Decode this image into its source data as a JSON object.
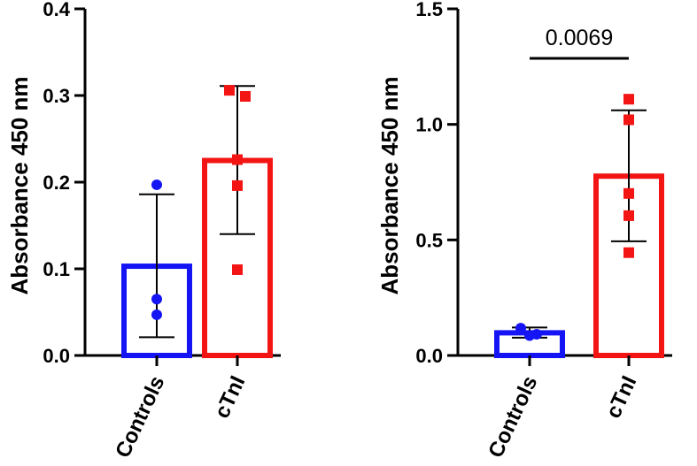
{
  "chart_data": [
    {
      "type": "bar",
      "title": "",
      "xlabel": "",
      "ylabel": "Absorbance 450 nm",
      "ylim": [
        0,
        0.4
      ],
      "yticks": [
        0.0,
        0.1,
        0.2,
        0.3,
        0.4
      ],
      "ytick_labels": [
        "0.0",
        "0.1",
        "0.2",
        "0.3",
        "0.4"
      ],
      "categories": [
        "Controls",
        "cTnI"
      ],
      "bars": [
        {
          "category": "Controls",
          "mean": 0.103,
          "sd_low": 0.021,
          "sd_high": 0.186,
          "color": "#1414f5",
          "points": [
            0.197,
            0.065,
            0.047
          ]
        },
        {
          "category": "cTnI",
          "mean": 0.225,
          "sd_low": 0.14,
          "sd_high": 0.311,
          "color": "#f31414",
          "points": [
            0.306,
            0.299,
            0.226,
            0.196,
            0.099
          ]
        }
      ],
      "annotation": null
    },
    {
      "type": "bar",
      "title": "",
      "xlabel": "",
      "ylabel": "Absorbance 450 nm",
      "ylim": [
        0,
        1.5
      ],
      "yticks": [
        0.0,
        0.5,
        1.0,
        1.5
      ],
      "ytick_labels": [
        "0.0",
        "0.5",
        "1.0",
        "1.5"
      ],
      "categories": [
        "Controls",
        "cTnI"
      ],
      "bars": [
        {
          "category": "Controls",
          "mean": 0.098,
          "sd_low": 0.077,
          "sd_high": 0.121,
          "color": "#1414f5",
          "points": [
            0.118,
            0.092,
            0.086
          ]
        },
        {
          "category": "cTnI",
          "mean": 0.776,
          "sd_low": 0.494,
          "sd_high": 1.061,
          "color": "#f31414",
          "points": [
            1.109,
            1.02,
            0.701,
            0.605,
            0.445
          ]
        }
      ],
      "annotation": {
        "text": "0.0069",
        "from": "Controls",
        "to": "cTnI"
      }
    }
  ]
}
